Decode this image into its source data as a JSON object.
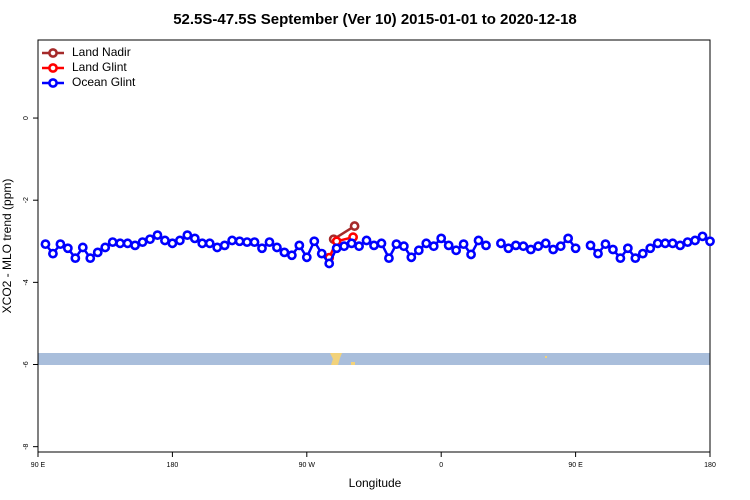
{
  "chart_data": {
    "type": "line",
    "title": "52.5S-47.5S September (Ver 10)   2015-01-01 to 2020-12-18",
    "x_label": "Longitude",
    "y_label": "XCO2 - MLO trend (ppm)",
    "xlim": [
      90,
      540
    ],
    "ylim": [
      -8.13,
      1.9
    ],
    "xticks": [
      {
        "value": 90,
        "label": "90 E"
      },
      180,
      {
        "value": 270,
        "label": "90 W"
      },
      {
        "value": 360,
        "label": "0"
      },
      {
        "value": 450,
        "label": "90 E"
      },
      {
        "value": 540,
        "label": "180"
      }
    ],
    "yticks": [
      0,
      -2,
      -4,
      -6,
      -8
    ],
    "legend": "top-left",
    "series": [
      {
        "name": "Land Nadir",
        "color": "#a52a2a",
        "x": [
          288,
          302
        ],
        "values": [
          -2.95,
          -2.63
        ]
      },
      {
        "name": "Land Glint",
        "color": "#ff0000",
        "x": [
          285,
          290,
          301
        ],
        "values": [
          -3.4,
          -3.0,
          -2.9
        ]
      },
      {
        "name": "Ocean Glint",
        "color": "#0000ff",
        "x": [
          95,
          100,
          105,
          110,
          115,
          120,
          125,
          130,
          135,
          140,
          145,
          150,
          155,
          160,
          165,
          170,
          175,
          180,
          185,
          190,
          195,
          200,
          205,
          210,
          215,
          220,
          225,
          230,
          235,
          240,
          245,
          250,
          255,
          260,
          265,
          270,
          275,
          280,
          285,
          290,
          295,
          300,
          305,
          310,
          315,
          320,
          325,
          330,
          335,
          340,
          345,
          350,
          355,
          360,
          365,
          370,
          375,
          380,
          385,
          390,
          395,
          400,
          405,
          410,
          415,
          420,
          425,
          430,
          435,
          440,
          445,
          450,
          455,
          460,
          465,
          470,
          475,
          480,
          485,
          490,
          495,
          500,
          505,
          510,
          515,
          520,
          525,
          530,
          535,
          540
        ],
        "values": [
          -3.07,
          -3.3,
          -3.07,
          -3.17,
          -3.41,
          -3.15,
          -3.41,
          -3.27,
          -3.15,
          -3.02,
          -3.05,
          -3.05,
          -3.1,
          -3.02,
          -2.95,
          -2.85,
          -2.98,
          -3.05,
          -2.98,
          -2.85,
          -2.93,
          -3.05,
          -3.05,
          -3.15,
          -3.1,
          -2.98,
          -3.0,
          -3.02,
          -3.02,
          -3.17,
          -3.02,
          -3.15,
          -3.27,
          -3.34,
          -3.1,
          -3.39,
          -3.0,
          -3.3,
          -3.54,
          -3.17,
          -3.12,
          -3.05,
          -3.12,
          -2.98,
          -3.1,
          -3.05,
          -3.41,
          -3.07,
          -3.12,
          -3.39,
          -3.22,
          -3.05,
          -3.12,
          -2.93,
          -3.1,
          -3.22,
          -3.07,
          -3.32,
          -2.98,
          -3.1,
          null,
          -3.05,
          -3.17,
          -3.1,
          -3.12,
          -3.2,
          -3.12,
          -3.05,
          -3.2,
          -3.12,
          -2.93,
          -3.17,
          null,
          -3.1,
          -3.3,
          -3.07,
          -3.2,
          -3.41,
          -3.17,
          -3.41,
          -3.3,
          -3.17,
          -3.05,
          -3.05,
          -3.05,
          -3.1,
          -3.02,
          -2.98,
          -2.88,
          -3.0
        ]
      }
    ]
  }
}
